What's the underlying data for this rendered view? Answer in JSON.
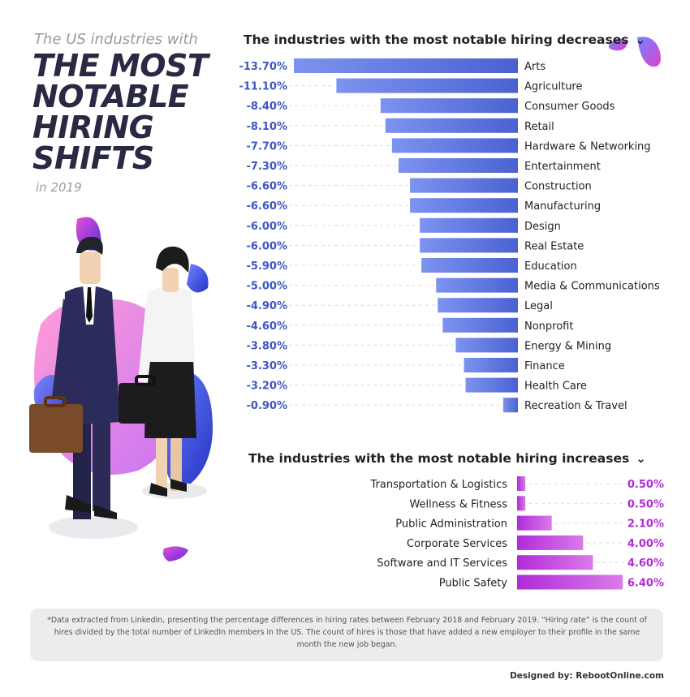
{
  "header": {
    "subtitle": "The US industries with",
    "title": "THE MOST NOTABLE HIRING SHIFTS",
    "year": "in 2019"
  },
  "colors": {
    "decrease_bar": "#4a62d1",
    "decrease_label": "#3d56c9",
    "increase_bar": "#b02bd8",
    "increase_label": "#b12bd6"
  },
  "chart_data": [
    {
      "type": "bar",
      "title": "The industries with the most notable hiring decreases",
      "categories": [
        "Arts",
        "Agriculture",
        "Consumer Goods",
        "Retail",
        "Hardware & Networking",
        "Entertainment",
        "Construction",
        "Manufacturing",
        "Design",
        "Real Estate",
        "Education",
        "Media & Communications",
        "Legal",
        "Nonprofit",
        "Energy & Mining",
        "Finance",
        "Health Care",
        "Recreation & Travel"
      ],
      "values": [
        -13.7,
        -11.1,
        -8.4,
        -8.1,
        -7.7,
        -7.3,
        -6.6,
        -6.6,
        -6.0,
        -6.0,
        -5.9,
        -5.0,
        -4.9,
        -4.6,
        -3.8,
        -3.3,
        -3.2,
        -0.9
      ],
      "value_labels": [
        "-13.70%",
        "-11.10%",
        "-8.40%",
        "-8.10%",
        "-7.70%",
        "-7.30%",
        "-6.60%",
        "-6.60%",
        "-6.00%",
        "-6.00%",
        "-5.90%",
        "-5.00%",
        "-4.90%",
        "-4.60%",
        "-3.80%",
        "-3.30%",
        "-3.20%",
        "-0.90%"
      ],
      "orientation": "horizontal"
    },
    {
      "type": "bar",
      "title": "The industries with the most notable hiring increases",
      "categories": [
        "Transportation & Logistics",
        "Wellness & Fitness",
        "Public Administration",
        "Corporate Services",
        "Software and IT Services",
        "Public Safety"
      ],
      "values": [
        0.5,
        0.5,
        2.1,
        4.0,
        4.6,
        6.4
      ],
      "value_labels": [
        "0.50%",
        "0.50%",
        "2.10%",
        "4.00%",
        "4.60%",
        "6.40%"
      ],
      "orientation": "horizontal"
    }
  ],
  "footnote": "*Data extracted from LinkedIn, presenting the percentage differences in hiring rates between February 2018 and February 2019. “Hiring rate” is the count of hires divided by the total number of LinkedIn members in the US. The count of hires is those that have added a new employer to their profile in the same month the new job began.",
  "credit": "Designed by: RebootOnline.com",
  "chevron_icon": "chevron-down-icon"
}
